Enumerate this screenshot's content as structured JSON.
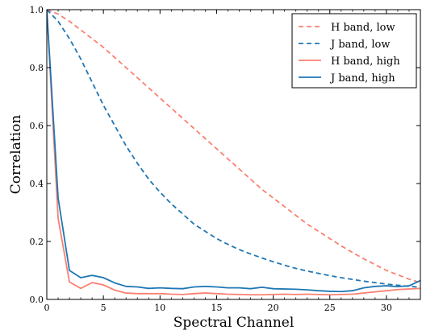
{
  "chart_data": {
    "type": "line",
    "title": "",
    "xlabel": "Spectral Channel",
    "ylabel": "Correlation",
    "xlim": [
      0,
      33
    ],
    "ylim": [
      0.0,
      1.0
    ],
    "xticks": [
      0,
      5,
      10,
      15,
      20,
      25,
      30
    ],
    "yticks": [
      0.0,
      0.2,
      0.4,
      0.6,
      0.8,
      1.0
    ],
    "grid": false,
    "legend_position": "top-right",
    "series": [
      {
        "name": "H band, low",
        "color": "#fa8072",
        "dash": "dashed",
        "x": [
          0,
          1,
          2,
          3,
          4,
          5,
          6,
          7,
          8,
          9,
          10,
          11,
          12,
          13,
          14,
          15,
          16,
          17,
          18,
          19,
          20,
          21,
          22,
          23,
          24,
          25,
          26,
          27,
          28,
          29,
          30,
          31,
          32,
          33
        ],
        "values": [
          1.0,
          0.985,
          0.96,
          0.93,
          0.9,
          0.87,
          0.835,
          0.8,
          0.765,
          0.73,
          0.695,
          0.66,
          0.625,
          0.59,
          0.555,
          0.52,
          0.485,
          0.45,
          0.415,
          0.38,
          0.35,
          0.32,
          0.29,
          0.26,
          0.235,
          0.21,
          0.185,
          0.162,
          0.14,
          0.12,
          0.1,
          0.085,
          0.07,
          0.058
        ]
      },
      {
        "name": "J band, low",
        "color": "#1f77b4",
        "dash": "dashed",
        "x": [
          0,
          1,
          2,
          3,
          4,
          5,
          6,
          7,
          8,
          9,
          10,
          11,
          12,
          13,
          14,
          15,
          16,
          17,
          18,
          19,
          20,
          21,
          22,
          23,
          24,
          25,
          26,
          27,
          28,
          29,
          30,
          31,
          32,
          33
        ],
        "values": [
          1.0,
          0.96,
          0.9,
          0.83,
          0.75,
          0.67,
          0.6,
          0.53,
          0.47,
          0.415,
          0.37,
          0.33,
          0.295,
          0.26,
          0.235,
          0.21,
          0.19,
          0.172,
          0.157,
          0.143,
          0.13,
          0.118,
          0.107,
          0.098,
          0.09,
          0.082,
          0.075,
          0.069,
          0.063,
          0.058,
          0.053,
          0.049,
          0.045,
          0.042
        ]
      },
      {
        "name": "H band, high",
        "color": "#fa8072",
        "dash": "solid",
        "x": [
          0,
          1,
          2,
          3,
          4,
          5,
          6,
          7,
          8,
          9,
          10,
          11,
          12,
          13,
          14,
          15,
          16,
          17,
          18,
          19,
          20,
          21,
          22,
          23,
          24,
          25,
          26,
          27,
          28,
          29,
          30,
          31,
          32,
          33
        ],
        "values": [
          1.0,
          0.28,
          0.06,
          0.038,
          0.058,
          0.05,
          0.032,
          0.022,
          0.02,
          0.02,
          0.02,
          0.018,
          0.017,
          0.02,
          0.022,
          0.02,
          0.018,
          0.017,
          0.016,
          0.016,
          0.017,
          0.018,
          0.017,
          0.018,
          0.017,
          0.016,
          0.017,
          0.018,
          0.022,
          0.026,
          0.03,
          0.034,
          0.036,
          0.038
        ]
      },
      {
        "name": "J band, high",
        "color": "#1f77b4",
        "dash": "solid",
        "x": [
          0,
          1,
          2,
          3,
          4,
          5,
          6,
          7,
          8,
          9,
          10,
          11,
          12,
          13,
          14,
          15,
          16,
          17,
          18,
          19,
          20,
          21,
          22,
          23,
          24,
          25,
          26,
          27,
          28,
          29,
          30,
          31,
          32,
          33
        ],
        "values": [
          1.0,
          0.35,
          0.1,
          0.075,
          0.083,
          0.075,
          0.057,
          0.045,
          0.043,
          0.038,
          0.04,
          0.038,
          0.037,
          0.043,
          0.045,
          0.043,
          0.04,
          0.04,
          0.037,
          0.042,
          0.037,
          0.036,
          0.035,
          0.033,
          0.03,
          0.028,
          0.027,
          0.03,
          0.04,
          0.045,
          0.047,
          0.044,
          0.047,
          0.065
        ]
      }
    ]
  }
}
